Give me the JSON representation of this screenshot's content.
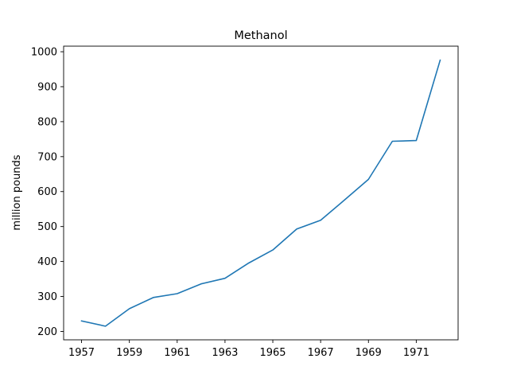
{
  "chart_data": {
    "type": "line",
    "title": "Methanol",
    "xlabel": "",
    "ylabel": "million pounds",
    "x": [
      1957,
      1958,
      1959,
      1960,
      1961,
      1962,
      1963,
      1964,
      1965,
      1966,
      1967,
      1968,
      1969,
      1970,
      1971,
      1972
    ],
    "series": [
      {
        "values": [
          230,
          215,
          265,
          297,
          308,
          336,
          352,
          396,
          433,
          493,
          518,
          576,
          635,
          744,
          746,
          976
        ],
        "color": "#1f77b4"
      }
    ],
    "xlim": [
      1956.25,
      1972.75
    ],
    "ylim": [
      176,
      1016
    ],
    "xticks": [
      "1957",
      "1959",
      "1961",
      "1963",
      "1965",
      "1967",
      "1969",
      "1971"
    ],
    "yticks": [
      "200",
      "300",
      "400",
      "500",
      "600",
      "700",
      "800",
      "900",
      "1000"
    ],
    "grid": false,
    "legend": "none"
  }
}
